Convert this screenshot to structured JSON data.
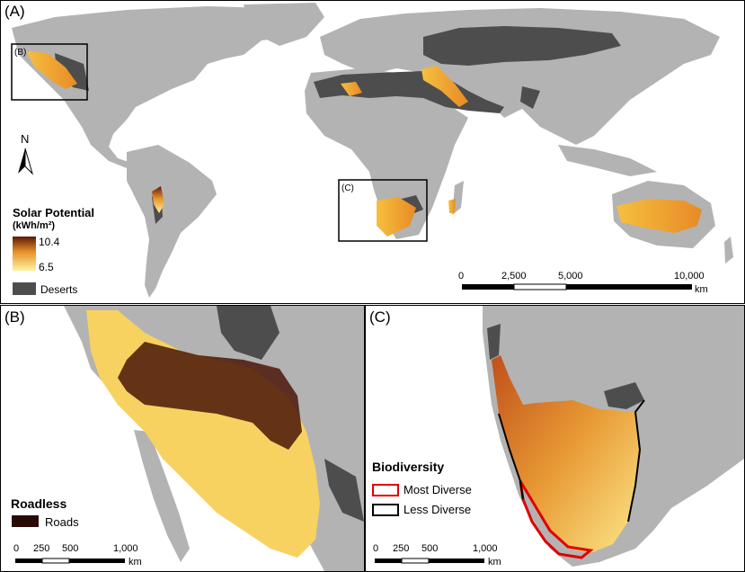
{
  "panel_a": {
    "label": "(A)",
    "inset_b_label": "(B)",
    "inset_c_label": "(C)",
    "north_label": "N",
    "legend": {
      "title": "Solar Potential",
      "unit": "(kWh/m²)",
      "max": "10.4",
      "min": "6.5",
      "deserts": "Deserts",
      "colors": {
        "high": "#5a1a05",
        "mid": "#e8902a",
        "low": "#fff3a0",
        "desert": "#4d4d4d"
      }
    },
    "scale": {
      "ticks": [
        "0",
        "2,500",
        "5,000",
        "10,000"
      ],
      "unit": "km"
    }
  },
  "panel_b": {
    "label": "(B)",
    "legend": {
      "title": "Roadless",
      "roads": "Roads",
      "roads_color": "#2a0a05"
    },
    "scale": {
      "ticks": [
        "0",
        "250",
        "500",
        "1,000"
      ],
      "unit": "km"
    }
  },
  "panel_c": {
    "label": "(C)",
    "legend": {
      "title": "Biodiversity",
      "most": "Most Diverse",
      "less": "Less Diverse",
      "most_color": "#e00000",
      "less_color": "#000000"
    },
    "scale": {
      "ticks": [
        "0",
        "250",
        "500",
        "1,000"
      ],
      "unit": "km"
    }
  }
}
